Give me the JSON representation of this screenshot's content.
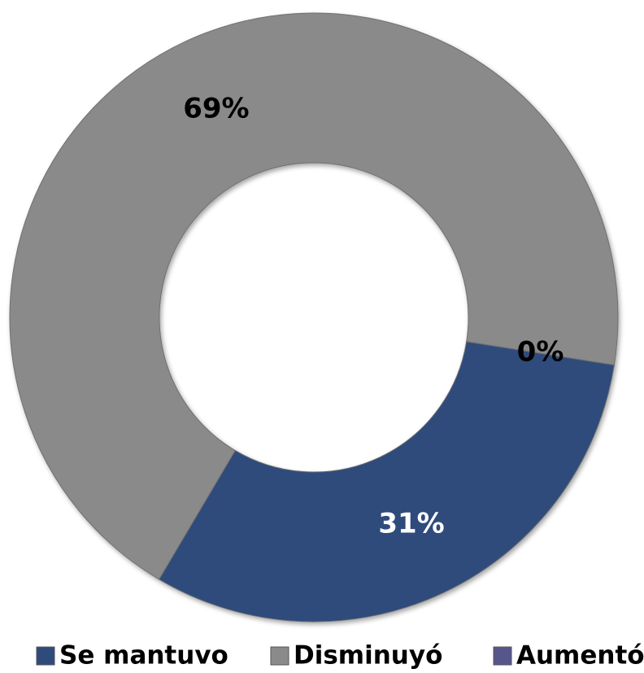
{
  "chart_data": {
    "type": "donut",
    "categories": [
      "Se mantuvo",
      "Disminuyó",
      "Aumentó"
    ],
    "values": [
      31,
      69,
      0
    ],
    "value_labels": [
      "31%",
      "69%",
      "0%"
    ],
    "colors": [
      "#2f4b7c",
      "#8a8a8a",
      "#56568c"
    ],
    "legend": "bottom"
  }
}
